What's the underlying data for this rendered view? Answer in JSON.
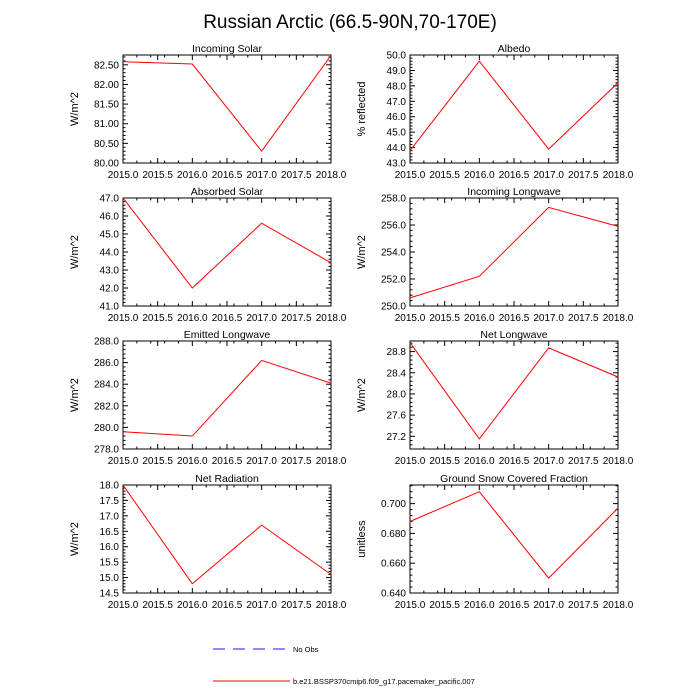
{
  "title": "Russian Arctic (66.5-90N,70-170E)",
  "colors": {
    "series": "#ff0000",
    "obs": "#1a1aff",
    "axis": "#000000"
  },
  "legend": {
    "obs_label": "No Obs",
    "model_label": "b.e21.BSSP370cmip6.f09_g17.pacemaker_pacific.007"
  },
  "chart_data": [
    {
      "type": "line",
      "title": "Incoming Solar",
      "ylabel": "W/m^2",
      "xlabel": "",
      "xlim": [
        2015,
        2018
      ],
      "ylim": [
        80.0,
        82.75
      ],
      "xticks": [
        "2015.0",
        "2015.5",
        "2016.0",
        "2016.5",
        "2017.0",
        "2017.5",
        "2018.0"
      ],
      "yticks": [
        "80.00",
        "80.50",
        "81.00",
        "81.50",
        "82.00",
        "82.50"
      ],
      "series": [
        {
          "name": "b.e21.BSSP370cmip6.f09_g17.pacemaker_pacific.007",
          "x": [
            2015,
            2016,
            2017,
            2018
          ],
          "values": [
            82.58,
            82.52,
            80.3,
            82.74
          ]
        }
      ]
    },
    {
      "type": "line",
      "title": "Albedo",
      "ylabel": "% reflected",
      "xlabel": "",
      "xlim": [
        2015,
        2018
      ],
      "ylim": [
        43.0,
        50.0
      ],
      "xticks": [
        "2015.0",
        "2015.5",
        "2016.0",
        "2016.5",
        "2017.0",
        "2017.5",
        "2018.0"
      ],
      "yticks": [
        "43.0",
        "44.0",
        "45.0",
        "46.0",
        "47.0",
        "48.0",
        "49.0",
        "50.0"
      ],
      "series": [
        {
          "name": "b.e21.BSSP370cmip6.f09_g17.pacemaker_pacific.007",
          "x": [
            2015,
            2016,
            2017,
            2018
          ],
          "values": [
            43.8,
            49.6,
            43.9,
            48.2
          ]
        }
      ]
    },
    {
      "type": "line",
      "title": "Absorbed Solar",
      "ylabel": "W/m^2",
      "xlabel": "",
      "xlim": [
        2015,
        2018
      ],
      "ylim": [
        41.0,
        47.0
      ],
      "xticks": [
        "2015.0",
        "2015.5",
        "2016.0",
        "2016.5",
        "2017.0",
        "2017.5",
        "2018.0"
      ],
      "yticks": [
        "41.0",
        "42.0",
        "43.0",
        "44.0",
        "45.0",
        "46.0",
        "47.0"
      ],
      "series": [
        {
          "name": "b.e21.BSSP370cmip6.f09_g17.pacemaker_pacific.007",
          "x": [
            2015,
            2016,
            2017,
            2018
          ],
          "values": [
            47.0,
            42.0,
            45.6,
            43.4
          ]
        }
      ]
    },
    {
      "type": "line",
      "title": "Incoming Longwave",
      "ylabel": "W/m^2",
      "xlabel": "",
      "xlim": [
        2015,
        2018
      ],
      "ylim": [
        250.0,
        258.0
      ],
      "xticks": [
        "2015.0",
        "2015.5",
        "2016.0",
        "2016.5",
        "2017.0",
        "2017.5",
        "2018.0"
      ],
      "yticks": [
        "250.0",
        "252.0",
        "254.0",
        "256.0",
        "258.0"
      ],
      "series": [
        {
          "name": "b.e21.BSSP370cmip6.f09_g17.pacemaker_pacific.007",
          "x": [
            2015,
            2016,
            2017,
            2018
          ],
          "values": [
            250.6,
            252.2,
            257.3,
            255.9
          ]
        }
      ]
    },
    {
      "type": "line",
      "title": "Emitted Longwave",
      "ylabel": "W/m^2",
      "xlabel": "",
      "xlim": [
        2015,
        2018
      ],
      "ylim": [
        278.0,
        288.0
      ],
      "xticks": [
        "2015.0",
        "2015.5",
        "2016.0",
        "2016.5",
        "2017.0",
        "2017.5",
        "2018.0"
      ],
      "yticks": [
        "278.0",
        "280.0",
        "282.0",
        "284.0",
        "286.0",
        "288.0"
      ],
      "series": [
        {
          "name": "b.e21.BSSP370cmip6.f09_g17.pacemaker_pacific.007",
          "x": [
            2015,
            2016,
            2017,
            2018
          ],
          "values": [
            279.6,
            279.2,
            286.2,
            284.1
          ]
        }
      ]
    },
    {
      "type": "line",
      "title": "Net Longwave",
      "ylabel": "W/m^2",
      "xlabel": "",
      "xlim": [
        2015,
        2018
      ],
      "ylim": [
        26.96,
        29.0
      ],
      "xticks": [
        "2015.0",
        "2015.5",
        "2016.0",
        "2016.5",
        "2017.0",
        "2017.5",
        "2018.0"
      ],
      "yticks": [
        "27.2",
        "27.6",
        "28.0",
        "28.4",
        "28.8"
      ],
      "series": [
        {
          "name": "b.e21.BSSP370cmip6.f09_g17.pacemaker_pacific.007",
          "x": [
            2015,
            2016,
            2017,
            2018
          ],
          "values": [
            28.97,
            27.15,
            28.87,
            28.32
          ]
        }
      ]
    },
    {
      "type": "line",
      "title": "Net Radiation",
      "ylabel": "W/m^2",
      "xlabel": "",
      "xlim": [
        2015,
        2018
      ],
      "ylim": [
        14.5,
        18.0
      ],
      "xticks": [
        "2015.0",
        "2015.5",
        "2016.0",
        "2016.5",
        "2017.0",
        "2017.5",
        "2018.0"
      ],
      "yticks": [
        "14.5",
        "15.0",
        "15.5",
        "16.0",
        "16.5",
        "17.0",
        "17.5",
        "18.0"
      ],
      "series": [
        {
          "name": "b.e21.BSSP370cmip6.f09_g17.pacemaker_pacific.007",
          "x": [
            2015,
            2016,
            2017,
            2018
          ],
          "values": [
            18.0,
            14.8,
            16.7,
            15.1
          ]
        }
      ]
    },
    {
      "type": "line",
      "title": "Ground Snow Covered Fraction",
      "ylabel": "unitless",
      "xlabel": "",
      "xlim": [
        2015,
        2018
      ],
      "ylim": [
        0.64,
        0.7125
      ],
      "xticks": [
        "2015.0",
        "2015.5",
        "2016.0",
        "2016.5",
        "2017.0",
        "2017.5",
        "2018.0"
      ],
      "yticks": [
        "0.640",
        "0.660",
        "0.680",
        "0.700"
      ],
      "series": [
        {
          "name": "b.e21.BSSP370cmip6.f09_g17.pacemaker_pacific.007",
          "x": [
            2015,
            2016,
            2017,
            2018
          ],
          "values": [
            0.688,
            0.708,
            0.65,
            0.697
          ]
        }
      ]
    }
  ]
}
